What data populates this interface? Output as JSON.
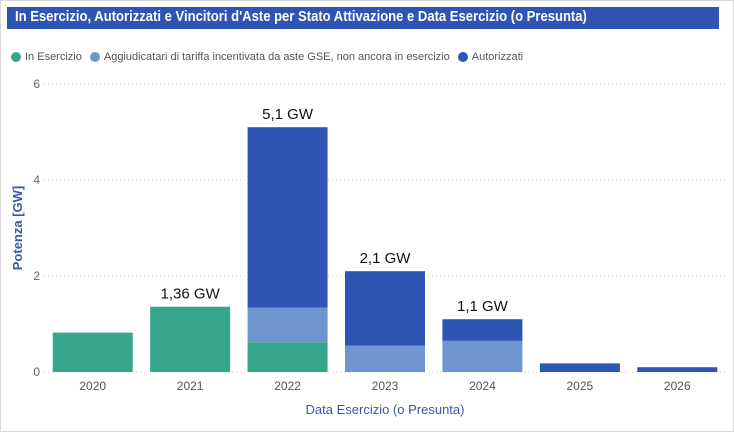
{
  "chart_data": {
    "type": "bar",
    "stacked": true,
    "title": "In Esercizio, Autorizzati e Vincitori d'Aste per Stato Attivazione e Data Esercizio (o Presunta)",
    "xlabel": "Data Esercizio (o Presunta)",
    "ylabel": "Potenza [GW]",
    "ylim": [
      0,
      6
    ],
    "yticks": [
      "0",
      "2",
      "4",
      "6"
    ],
    "grid": true,
    "legend_position": "top-left",
    "categories": [
      "2020",
      "2021",
      "2022",
      "2023",
      "2024",
      "2025",
      "2026"
    ],
    "series": [
      {
        "name": "In Esercizio",
        "color": "#35a58c",
        "values": [
          0.82,
          1.36,
          0.62,
          0,
          0,
          0,
          0
        ]
      },
      {
        "name": "Aggiudicatari di tariffa incentivata da aste GSE, non ancora in esercizio",
        "color": "#6f95d1",
        "values": [
          0,
          0,
          0.72,
          0.55,
          0.65,
          0,
          0
        ]
      },
      {
        "name": "Autorizzati",
        "color": "#2f55b4",
        "values": [
          0,
          0,
          3.76,
          1.55,
          0.45,
          0.18,
          0.1
        ]
      }
    ],
    "total_labels": [
      "",
      "1,36 GW",
      "5,1 GW",
      "2,1 GW",
      "1,1 GW",
      "",
      ""
    ]
  }
}
